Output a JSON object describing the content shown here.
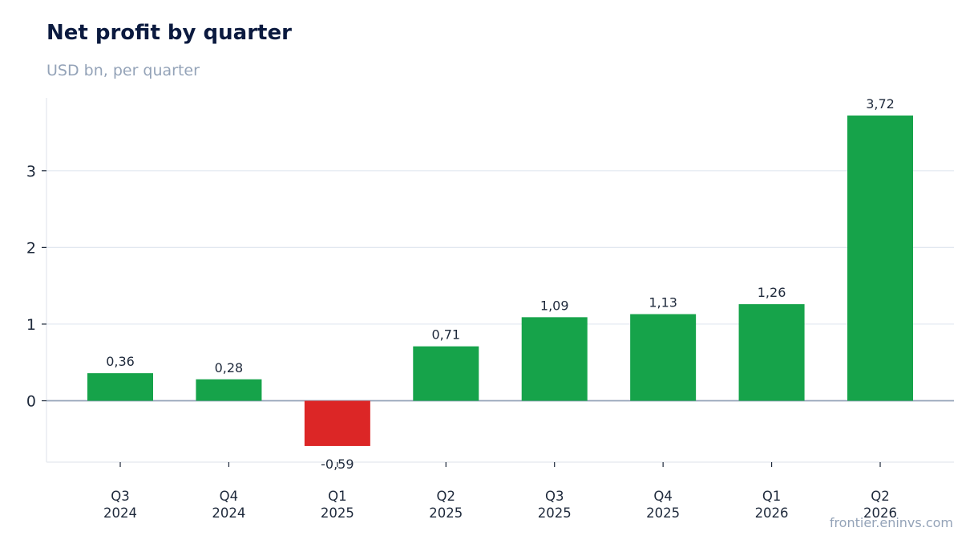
{
  "chart_data": {
    "type": "bar",
    "title": "Net profit by quarter",
    "subtitle": "USD bn, per quarter",
    "categories": [
      [
        "Q3",
        "2024"
      ],
      [
        "Q4",
        "2024"
      ],
      [
        "Q1",
        "2025"
      ],
      [
        "Q2",
        "2025"
      ],
      [
        "Q3",
        "2025"
      ],
      [
        "Q4",
        "2025"
      ],
      [
        "Q1",
        "2026"
      ],
      [
        "Q2",
        "2026"
      ]
    ],
    "values": [
      0.36,
      0.28,
      -0.59,
      0.71,
      1.09,
      1.13,
      1.26,
      3.72
    ],
    "value_labels": [
      "0,36",
      "0,28",
      "-0,59",
      "0,71",
      "1,09",
      "1,13",
      "1,26",
      "3,72"
    ],
    "y_ticks": [
      0,
      1,
      2,
      3
    ],
    "ylim": [
      -0.8,
      3.95
    ],
    "grid": true,
    "xlabel": "",
    "ylabel": "",
    "colors": {
      "positive": "#16a34a",
      "negative": "#dc2626",
      "baseline": "#94a3b8",
      "grid": "#e2e8f0"
    }
  },
  "footer": {
    "source": "frontier.eninvs.com"
  }
}
